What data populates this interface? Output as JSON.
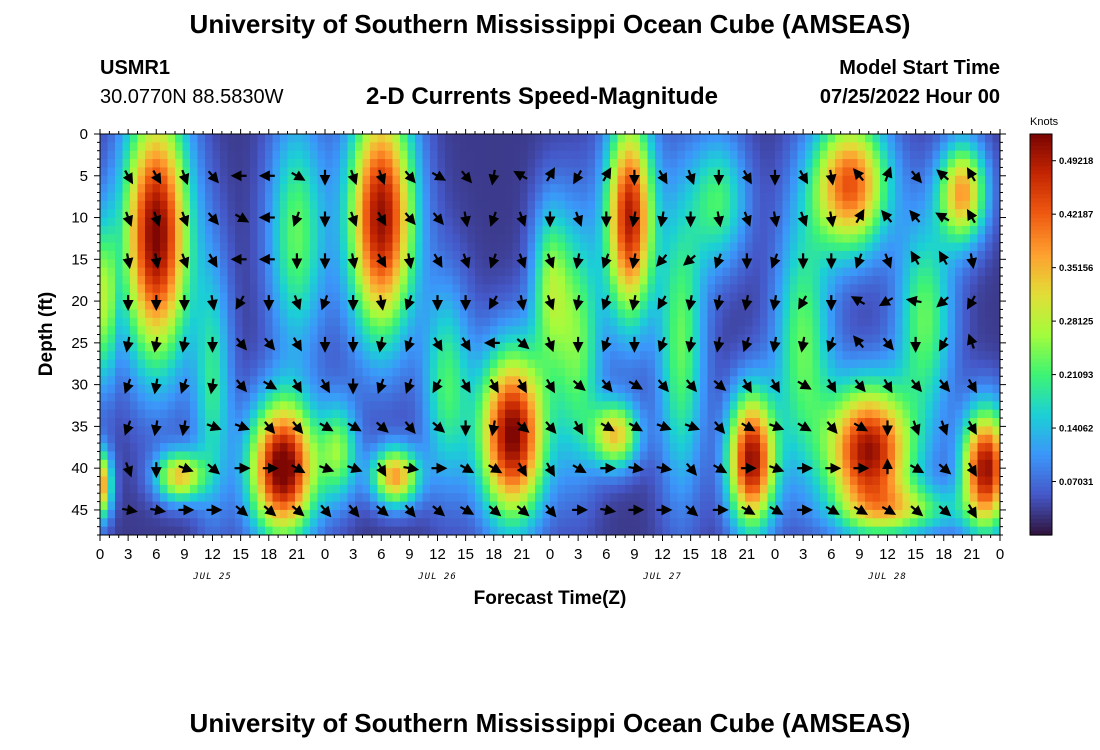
{
  "header": {
    "title": "University of Southern Mississippi Ocean Cube (AMSEAS)",
    "station_id": "USMR1",
    "station_coords": "30.0770N  88.5830W",
    "plot_title": "2-D Currents Speed-Magnitude",
    "model_start_label": "Model Start Time",
    "model_start_value": "07/25/2022 Hour 00"
  },
  "footer": {
    "title": "University of Southern Mississippi Ocean Cube (AMSEAS)"
  },
  "chart_data": {
    "type": "heatmap",
    "title": "2-D Currents Speed-Magnitude",
    "xlabel": "Forecast Time(Z)",
    "ylabel": "Depth (ft)",
    "xlim": [
      0,
      96
    ],
    "ylim": [
      0,
      48
    ],
    "x_ticks": [
      0,
      3,
      6,
      9,
      12,
      15,
      18,
      21,
      24,
      27,
      30,
      33,
      36,
      39,
      42,
      45,
      48,
      51,
      54,
      57,
      60,
      63,
      66,
      69,
      72,
      75,
      78,
      81,
      84,
      87,
      90,
      93,
      96
    ],
    "x_tick_labels": [
      "0",
      "3",
      "6",
      "9",
      "12",
      "15",
      "18",
      "21",
      "0",
      "3",
      "6",
      "9",
      "12",
      "15",
      "18",
      "21",
      "0",
      "3",
      "6",
      "9",
      "12",
      "15",
      "18",
      "21",
      "0",
      "3",
      "6",
      "9",
      "12",
      "15",
      "18",
      "21",
      "0"
    ],
    "y_ticks": [
      0,
      5,
      10,
      15,
      20,
      25,
      30,
      35,
      40,
      45
    ],
    "y_tick_labels": [
      "0",
      "5",
      "10",
      "15",
      "20",
      "25",
      "30",
      "35",
      "40",
      "45"
    ],
    "day_labels": [
      {
        "x": 12,
        "label": "JUL 25"
      },
      {
        "x": 36,
        "label": "JUL 26"
      },
      {
        "x": 60,
        "label": "JUL 27"
      },
      {
        "x": 84,
        "label": "JUL 28"
      }
    ],
    "colorbar": {
      "label": "Knots",
      "min": 0,
      "max": 0.5273,
      "ticks": [
        0.07031,
        0.14062,
        0.21093,
        0.28125,
        0.35156,
        0.42187,
        0.49218
      ],
      "tick_labels": [
        "0.07031",
        "0.14062",
        "0.21093",
        "0.28125",
        "0.35156",
        "0.42187",
        "0.49218"
      ]
    },
    "speed_blobs": [
      {
        "t": 6,
        "d": 12,
        "st": 3.5,
        "sd": 15,
        "v": 0.5
      },
      {
        "t": 19.5,
        "d": 40,
        "st": 3.5,
        "sd": 8,
        "v": 0.52
      },
      {
        "t": 8.5,
        "d": 41,
        "st": 2.5,
        "sd": 3,
        "v": 0.3
      },
      {
        "t": 0,
        "d": 42,
        "st": 1.2,
        "sd": 4,
        "v": 0.36
      },
      {
        "t": 30,
        "d": 10,
        "st": 3.5,
        "sd": 14,
        "v": 0.48
      },
      {
        "t": 31.5,
        "d": 41,
        "st": 2.5,
        "sd": 3.5,
        "v": 0.34
      },
      {
        "t": 44,
        "d": 36,
        "st": 3.5,
        "sd": 10,
        "v": 0.5
      },
      {
        "t": 56.5,
        "d": 10,
        "st": 2.5,
        "sd": 12,
        "v": 0.46
      },
      {
        "t": 55,
        "d": 36,
        "st": 2.5,
        "sd": 4,
        "v": 0.3
      },
      {
        "t": 69.5,
        "d": 39,
        "st": 2.5,
        "sd": 8,
        "v": 0.48
      },
      {
        "t": 82,
        "d": 38,
        "st": 4.5,
        "sd": 8,
        "v": 0.48
      },
      {
        "t": 80,
        "d": 6,
        "st": 4,
        "sd": 8,
        "v": 0.4
      },
      {
        "t": 92,
        "d": 7,
        "st": 2.5,
        "sd": 6,
        "v": 0.34
      },
      {
        "t": 94.5,
        "d": 40,
        "st": 2.5,
        "sd": 7,
        "v": 0.48
      },
      {
        "t": 0.5,
        "d": 20,
        "st": 1.2,
        "sd": 10,
        "v": 0.22
      },
      {
        "t": 21,
        "d": 12,
        "st": 3,
        "sd": 14,
        "v": 0.2
      },
      {
        "t": 37,
        "d": 30,
        "st": 2.5,
        "sd": 12,
        "v": 0.18
      },
      {
        "t": 48,
        "d": 18,
        "st": 2,
        "sd": 10,
        "v": 0.2
      },
      {
        "t": 51,
        "d": 25,
        "st": 2.5,
        "sd": 15,
        "v": 0.2
      },
      {
        "t": 62,
        "d": 25,
        "st": 2.5,
        "sd": 18,
        "v": 0.2
      },
      {
        "t": 75,
        "d": 25,
        "st": 3,
        "sd": 15,
        "v": 0.2
      },
      {
        "t": 88,
        "d": 22,
        "st": 3,
        "sd": 12,
        "v": 0.2
      },
      {
        "t": 25.5,
        "d": 38,
        "st": 2,
        "sd": 6,
        "v": 0.2
      },
      {
        "t": 12,
        "d": 30,
        "st": 2,
        "sd": 15,
        "v": 0.16
      },
      {
        "t": 66,
        "d": 8,
        "st": 3,
        "sd": 8,
        "v": 0.18
      },
      {
        "t": 86,
        "d": 45,
        "st": 6,
        "sd": 3,
        "v": 0.18
      }
    ],
    "vector_times": [
      3,
      6,
      9,
      12,
      15,
      18,
      21,
      24,
      27,
      30,
      33,
      36,
      39,
      42,
      45,
      48,
      51,
      54,
      57,
      60,
      63,
      66,
      69,
      72,
      75,
      78,
      81,
      84,
      87,
      90,
      93
    ],
    "vector_depths": [
      5,
      10,
      15,
      20,
      25,
      30,
      35,
      40,
      45
    ],
    "vector_direction_pattern_deg": [
      [
        150,
        150,
        160,
        140,
        270,
        270,
        120,
        180,
        160,
        160,
        140,
        120,
        140,
        190,
        300,
        30,
        210,
        30,
        180,
        150,
        160,
        180,
        150,
        180,
        150,
        170,
        320,
        20,
        140,
        310,
        330
      ],
      [
        160,
        160,
        160,
        140,
        120,
        270,
        200,
        180,
        160,
        150,
        140,
        140,
        170,
        200,
        160,
        180,
        160,
        180,
        190,
        190,
        180,
        170,
        160,
        170,
        160,
        170,
        30,
        320,
        320,
        300,
        330
      ],
      [
        170,
        170,
        160,
        150,
        270,
        270,
        180,
        180,
        170,
        150,
        170,
        150,
        160,
        200,
        160,
        160,
        190,
        200,
        190,
        220,
        230,
        200,
        180,
        200,
        180,
        180,
        200,
        160,
        330,
        330,
        170
      ],
      [
        180,
        180,
        180,
        170,
        210,
        180,
        160,
        200,
        180,
        170,
        200,
        180,
        180,
        210,
        170,
        160,
        190,
        200,
        190,
        210,
        190,
        190,
        190,
        190,
        210,
        180,
        300,
        240,
        280,
        230,
        210
      ],
      [
        190,
        190,
        190,
        180,
        140,
        140,
        150,
        180,
        180,
        190,
        200,
        150,
        150,
        270,
        130,
        160,
        180,
        200,
        180,
        200,
        190,
        190,
        200,
        190,
        190,
        200,
        320,
        140,
        180,
        210,
        340
      ],
      [
        200,
        190,
        200,
        190,
        140,
        120,
        150,
        150,
        180,
        200,
        200,
        210,
        150,
        150,
        150,
        150,
        130,
        140,
        120,
        140,
        140,
        130,
        150,
        150,
        120,
        150,
        140,
        150,
        140,
        140,
        150
      ],
      [
        200,
        190,
        190,
        110,
        110,
        140,
        140,
        120,
        120,
        130,
        140,
        130,
        180,
        190,
        130,
        140,
        150,
        120,
        120,
        110,
        110,
        140,
        120,
        110,
        120,
        140,
        120,
        180,
        160,
        160,
        150
      ],
      [
        160,
        180,
        110,
        130,
        90,
        90,
        120,
        110,
        110,
        150,
        100,
        90,
        120,
        120,
        150,
        150,
        120,
        90,
        100,
        100,
        140,
        120,
        90,
        110,
        90,
        90,
        90,
        0,
        120,
        130,
        150
      ],
      [
        100,
        100,
        90,
        90,
        130,
        130,
        130,
        140,
        140,
        130,
        140,
        130,
        120,
        130,
        130,
        140,
        90,
        100,
        90,
        90,
        130,
        90,
        120,
        120,
        90,
        120,
        120,
        120,
        130,
        130,
        150
      ]
    ]
  }
}
